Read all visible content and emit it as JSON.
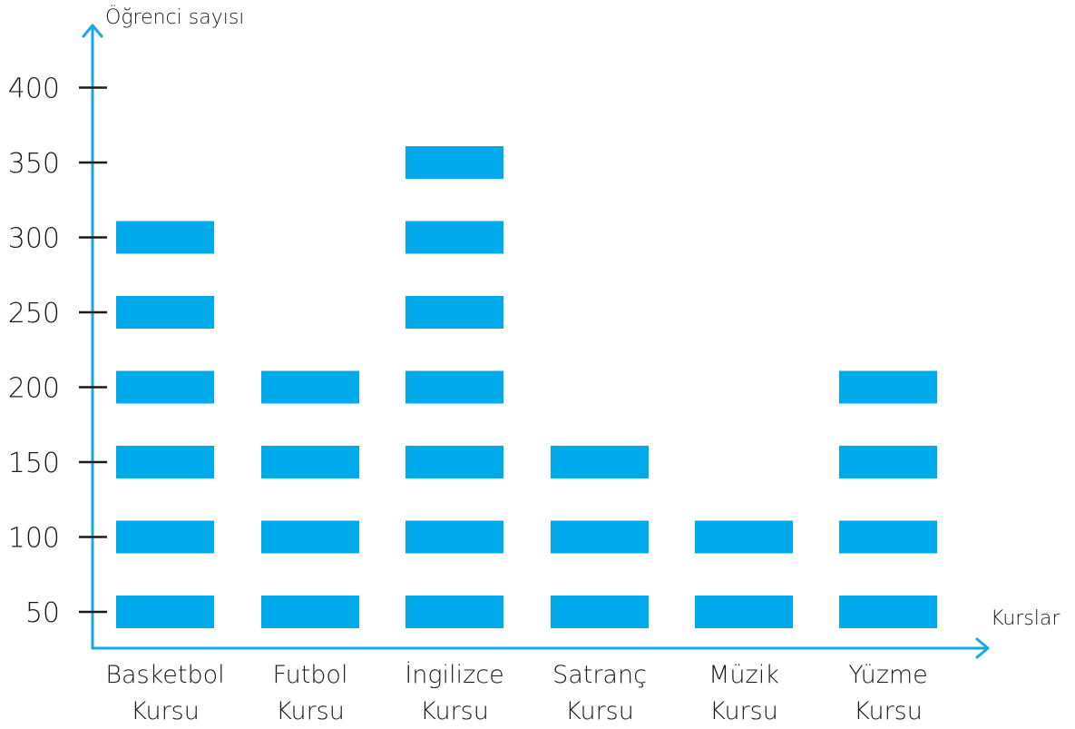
{
  "chart_data": {
    "type": "bar",
    "ylabel": "Öğrenci sayısı",
    "xlabel": "Kurslar",
    "yticks": [
      50,
      100,
      150,
      200,
      250,
      300,
      350,
      400
    ],
    "categories": [
      [
        "Basketbol",
        "Kursu"
      ],
      [
        "Futbol",
        "Kursu"
      ],
      [
        "İngilizce",
        "Kursu"
      ],
      [
        "Satranç",
        "Kursu"
      ],
      [
        "Müzik",
        "Kursu"
      ],
      [
        "Yüzme",
        "Kursu"
      ]
    ],
    "values": [
      300,
      200,
      350,
      150,
      100,
      200
    ],
    "unit_per_block": 50,
    "bar_color": "#00aaeb",
    "axis_color": "#1aa7e6"
  }
}
